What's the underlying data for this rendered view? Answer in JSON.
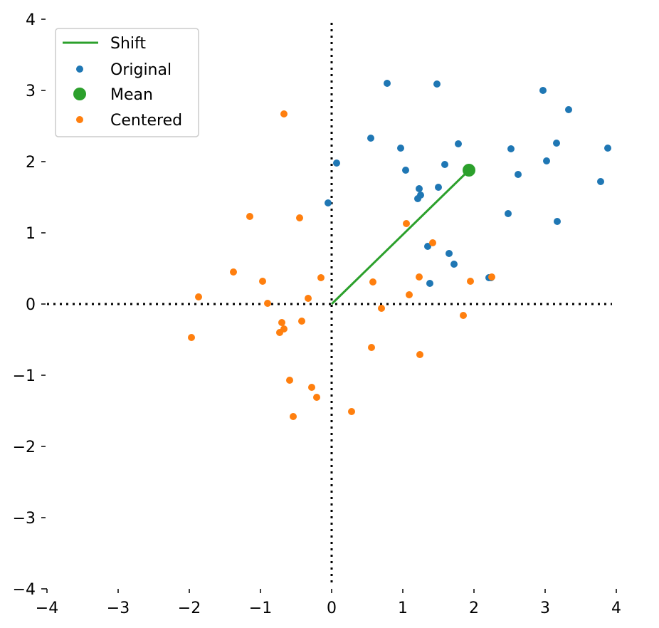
{
  "chart_data": {
    "type": "scatter",
    "title": "",
    "xlabel": "",
    "ylabel": "",
    "xlim": [
      -4,
      4
    ],
    "ylim": [
      -4,
      4
    ],
    "xticks": [
      "−4",
      "−3",
      "−2",
      "−1",
      "0",
      "1",
      "2",
      "3",
      "4"
    ],
    "yticks": [
      "4",
      "3",
      "2",
      "1",
      "0",
      "−1",
      "−2",
      "−3",
      "−4"
    ],
    "grid": false,
    "legend_position": "top-left",
    "reference_lines": {
      "x": 0,
      "y": 0,
      "style": "dotted"
    },
    "colors": {
      "original": "#1f77b4",
      "centered": "#ff7f0e",
      "mean": "#2ca02c",
      "shift": "#2ca02c"
    },
    "series": [
      {
        "name": "Shift",
        "kind": "line",
        "points": [
          [
            0,
            0
          ],
          [
            1.93,
            1.88
          ]
        ]
      },
      {
        "name": "Original",
        "kind": "scatter",
        "points": [
          [
            0.78,
            3.1
          ],
          [
            1.48,
            3.09
          ],
          [
            2.97,
            3.0
          ],
          [
            3.33,
            2.73
          ],
          [
            0.55,
            2.33
          ],
          [
            0.97,
            2.19
          ],
          [
            1.78,
            2.25
          ],
          [
            2.52,
            2.18
          ],
          [
            3.16,
            2.26
          ],
          [
            3.88,
            2.19
          ],
          [
            0.07,
            1.98
          ],
          [
            1.04,
            1.88
          ],
          [
            1.59,
            1.96
          ],
          [
            2.62,
            1.82
          ],
          [
            3.02,
            2.01
          ],
          [
            3.78,
            1.72
          ],
          [
            -0.05,
            1.42
          ],
          [
            1.23,
            1.62
          ],
          [
            1.25,
            1.53
          ],
          [
            1.21,
            1.48
          ],
          [
            1.5,
            1.64
          ],
          [
            2.48,
            1.27
          ],
          [
            3.17,
            1.16
          ],
          [
            1.35,
            0.81
          ],
          [
            1.65,
            0.71
          ],
          [
            1.72,
            0.56
          ],
          [
            1.38,
            0.29
          ],
          [
            2.21,
            0.37
          ],
          [
            2.24,
            0.37
          ]
        ]
      },
      {
        "name": "Mean",
        "kind": "marker",
        "points": [
          [
            1.93,
            1.88
          ]
        ]
      },
      {
        "name": "Centered",
        "kind": "scatter",
        "points": [
          [
            -0.67,
            2.67
          ],
          [
            -1.15,
            1.23
          ],
          [
            -0.45,
            1.21
          ],
          [
            1.05,
            1.13
          ],
          [
            1.42,
            0.86
          ],
          [
            -1.38,
            0.45
          ],
          [
            -0.97,
            0.32
          ],
          [
            -0.15,
            0.37
          ],
          [
            1.23,
            0.38
          ],
          [
            2.25,
            0.38
          ],
          [
            0.58,
            0.31
          ],
          [
            1.95,
            0.32
          ],
          [
            -1.87,
            0.1
          ],
          [
            -0.33,
            0.08
          ],
          [
            1.09,
            0.13
          ],
          [
            -0.9,
            0.01
          ],
          [
            0.7,
            -0.06
          ],
          [
            1.85,
            -0.16
          ],
          [
            -0.42,
            -0.24
          ],
          [
            -0.7,
            -0.26
          ],
          [
            -0.67,
            -0.35
          ],
          [
            -0.73,
            -0.4
          ],
          [
            -1.97,
            -0.47
          ],
          [
            0.56,
            -0.61
          ],
          [
            1.24,
            -0.71
          ],
          [
            -0.59,
            -1.07
          ],
          [
            -0.28,
            -1.17
          ],
          [
            -0.21,
            -1.31
          ],
          [
            0.28,
            -1.51
          ],
          [
            -0.54,
            -1.58
          ]
        ]
      }
    ]
  }
}
